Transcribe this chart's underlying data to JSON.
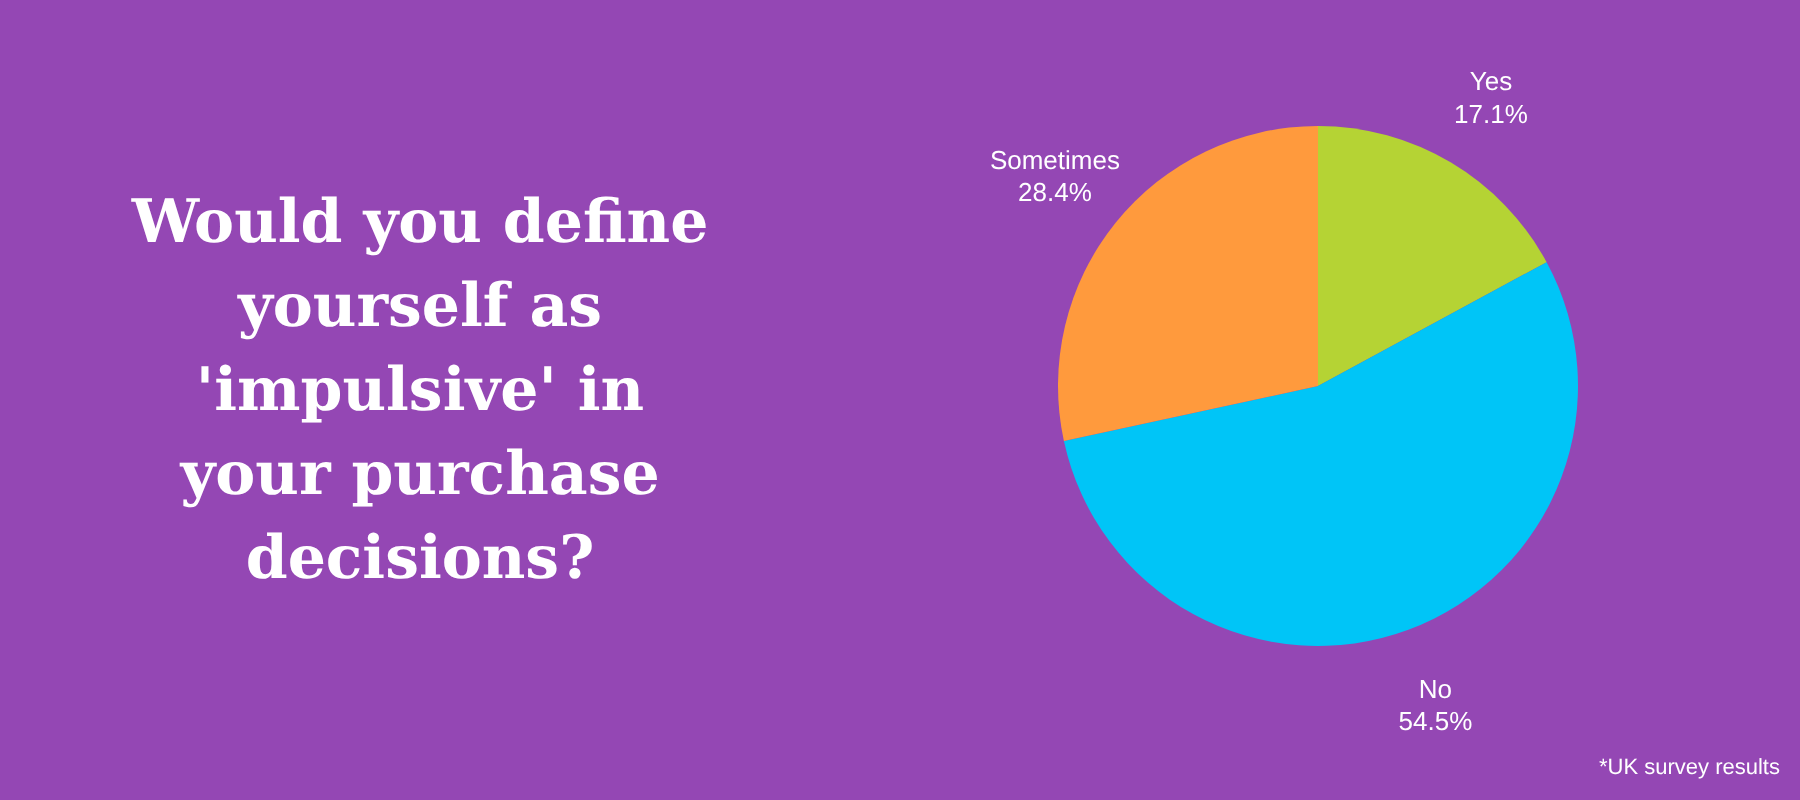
{
  "chart_data": {
    "type": "pie",
    "title": "Would you define yourself as 'impulsive' in your purchase decisions?",
    "categories": [
      "Yes",
      "No",
      "Sometimes"
    ],
    "values": [
      17.1,
      54.5,
      28.4
    ],
    "value_labels": [
      "17.1%",
      "54.5%",
      "28.4%"
    ],
    "colors": [
      "#b5d334",
      "#00c5f7",
      "#ff9a3d"
    ],
    "annotations": [
      "*UK survey results"
    ]
  }
}
